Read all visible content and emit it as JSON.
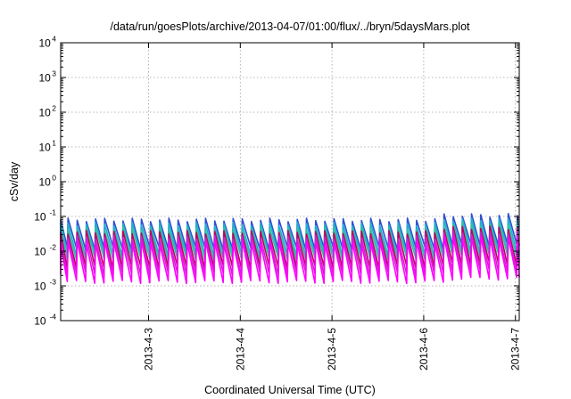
{
  "chart_data": {
    "type": "line",
    "title": "/data/run/goesPlots/archive/2013-04-07/01:00/flux/../bryn/5daysMars.plot",
    "xlabel": "Coordinated Universal Time (UTC)",
    "ylabel": "cSv/day",
    "y_scale": "log",
    "ylim": [
      0.0001,
      10000
    ],
    "y_ticks": [
      {
        "base": "10",
        "exp": "4",
        "value": 10000
      },
      {
        "base": "10",
        "exp": "3",
        "value": 1000
      },
      {
        "base": "10",
        "exp": "2",
        "value": 100
      },
      {
        "base": "10",
        "exp": "1",
        "value": 10
      },
      {
        "base": "10",
        "exp": "0",
        "value": 1
      },
      {
        "base": "10",
        "exp": "-1",
        "value": 0.1
      },
      {
        "base": "10",
        "exp": "-2",
        "value": 0.01
      },
      {
        "base": "10",
        "exp": "-3",
        "value": 0.001
      },
      {
        "base": "10",
        "exp": "-4",
        "value": 0.0001
      }
    ],
    "xlim": [
      "2013-04-02 01:00",
      "2013-04-07 01:00"
    ],
    "x_ticks": [
      {
        "label": "2013-4-3",
        "date": "2013-04-03"
      },
      {
        "label": "2013-4-4",
        "date": "2013-04-04"
      },
      {
        "label": "2013-4-5",
        "date": "2013-04-05"
      },
      {
        "label": "2013-4-6",
        "date": "2013-04-06"
      },
      {
        "label": "2013-4-7",
        "date": "2013-04-07"
      }
    ],
    "grid": true,
    "legend": "none",
    "pattern": {
      "cycles_per_day": 10,
      "description": "sawtooth: sharp rise then gradual decay each cycle"
    },
    "series": [
      {
        "color": "#3050d0",
        "peak": 0.08,
        "trough": 0.012
      },
      {
        "color": "#20b0d0",
        "peak": 0.06,
        "trough": 0.008
      },
      {
        "color": "#30c0a0",
        "peak": 0.045,
        "trough": 0.006
      },
      {
        "color": "#c00060",
        "peak": 0.035,
        "trough": 0.0035
      },
      {
        "color": "#d020d0",
        "peak": 0.025,
        "trough": 0.0022
      },
      {
        "color": "#ff00ff",
        "peak": 0.018,
        "trough": 0.0013
      }
    ]
  }
}
